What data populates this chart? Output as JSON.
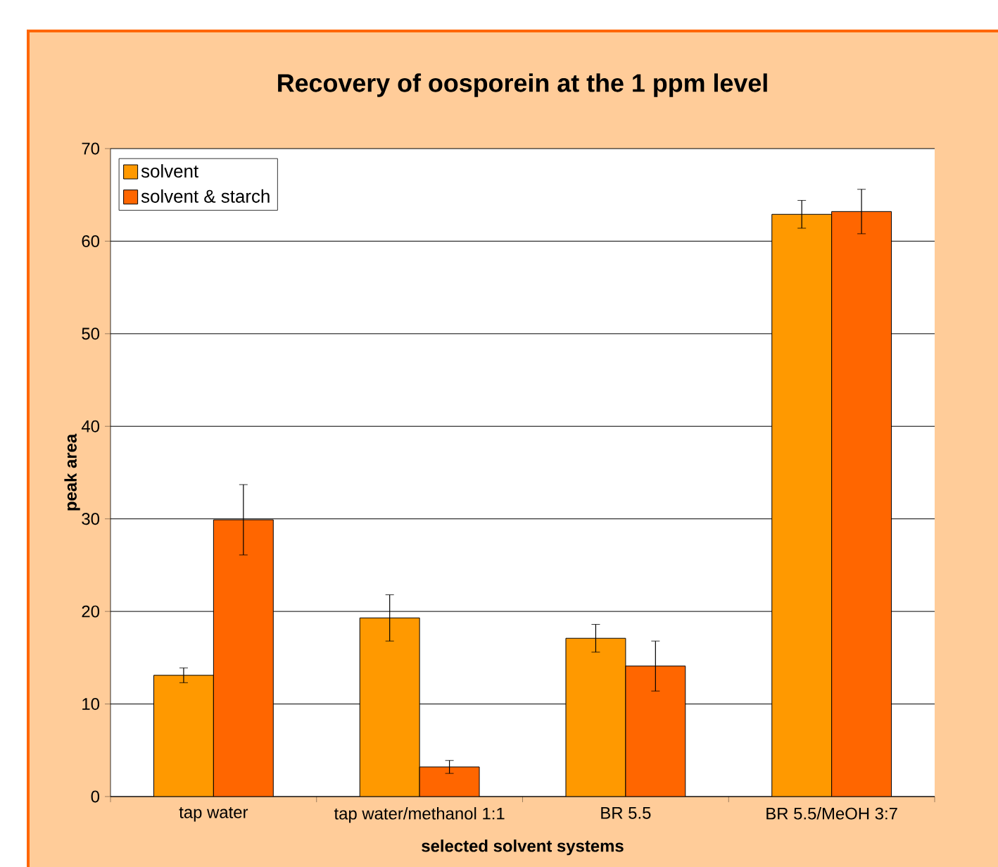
{
  "chart_data": {
    "type": "bar",
    "title": "Recovery of oosporein at the 1 ppm level",
    "xlabel": "selected solvent systems",
    "ylabel": "peak area",
    "categories": [
      "tap water",
      "tap water/methanol 1:1",
      "BR 5.5",
      "BR 5.5/MeOH 3:7"
    ],
    "series": [
      {
        "name": "solvent",
        "color": "#ff9900",
        "values": [
          13.1,
          19.3,
          17.1,
          62.9
        ],
        "errors": [
          0.8,
          2.5,
          1.5,
          1.5
        ]
      },
      {
        "name": "solvent & starch",
        "color": "#ff6600",
        "values": [
          29.9,
          3.2,
          14.1,
          63.2
        ],
        "errors": [
          3.8,
          0.7,
          2.7,
          2.4
        ]
      }
    ],
    "ylim": [
      0,
      70
    ],
    "yticks": [
      0,
      10,
      20,
      30,
      40,
      50,
      60,
      70
    ],
    "grid": "y",
    "legend": "top left"
  }
}
